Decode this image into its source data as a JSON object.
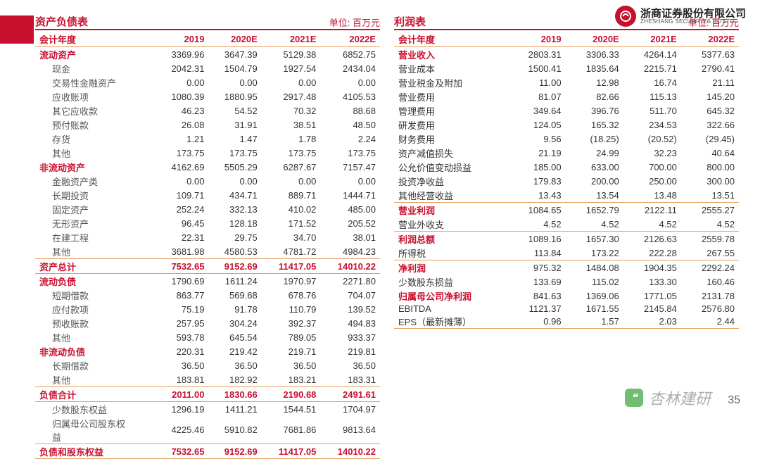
{
  "company_logo": {
    "cn": "浙商证券股份有限公司",
    "en": "ZHESHANG SECURITIES CO.LTD"
  },
  "unit": "单位: 百万元",
  "years": [
    "2019",
    "2020E",
    "2021E",
    "2022E"
  ],
  "year_header_label": "会计年度",
  "left": {
    "title": "资产负债表",
    "rows": [
      {
        "k": "流动资产",
        "v": [
          "3369.96",
          "3647.39",
          "5129.38",
          "6852.75"
        ],
        "bold": true
      },
      {
        "k": "现金",
        "v": [
          "2042.31",
          "1504.79",
          "1927.54",
          "2434.04"
        ],
        "indent": true
      },
      {
        "k": "交易性金融资产",
        "v": [
          "0.00",
          "0.00",
          "0.00",
          "0.00"
        ],
        "indent": true
      },
      {
        "k": "应收账项",
        "v": [
          "1080.39",
          "1880.95",
          "2917.48",
          "4105.53"
        ],
        "indent": true
      },
      {
        "k": "其它应收款",
        "v": [
          "46.23",
          "54.52",
          "70.32",
          "88.68"
        ],
        "indent": true
      },
      {
        "k": "预付账款",
        "v": [
          "26.08",
          "31.91",
          "38.51",
          "48.50"
        ],
        "indent": true
      },
      {
        "k": "存货",
        "v": [
          "1.21",
          "1.47",
          "1.78",
          "2.24"
        ],
        "indent": true
      },
      {
        "k": "其他",
        "v": [
          "173.75",
          "173.75",
          "173.75",
          "173.75"
        ],
        "indent": true
      },
      {
        "k": "非流动资产",
        "v": [
          "4162.69",
          "5505.29",
          "6287.67",
          "7157.47"
        ],
        "bold": true
      },
      {
        "k": "金融资产类",
        "v": [
          "0.00",
          "0.00",
          "0.00",
          "0.00"
        ],
        "indent": true
      },
      {
        "k": "长期投资",
        "v": [
          "109.71",
          "434.71",
          "889.71",
          "1444.71"
        ],
        "indent": true
      },
      {
        "k": "固定资产",
        "v": [
          "252.24",
          "332.13",
          "410.02",
          "485.00"
        ],
        "indent": true
      },
      {
        "k": "无形资产",
        "v": [
          "96.45",
          "128.18",
          "171.52",
          "205.52"
        ],
        "indent": true
      },
      {
        "k": "在建工程",
        "v": [
          "22.31",
          "29.75",
          "34.70",
          "38.01"
        ],
        "indent": true
      },
      {
        "k": "其他",
        "v": [
          "3681.98",
          "4580.53",
          "4781.72",
          "4984.23"
        ],
        "indent": true,
        "sep": true
      },
      {
        "k": "资产总计",
        "v": [
          "7532.65",
          "9152.69",
          "11417.05",
          "14010.22"
        ],
        "boldall": true,
        "sep": true
      },
      {
        "k": "流动负债",
        "v": [
          "1790.69",
          "1611.24",
          "1970.97",
          "2271.80"
        ],
        "bold": true
      },
      {
        "k": "短期借款",
        "v": [
          "863.77",
          "569.68",
          "678.76",
          "704.07"
        ],
        "indent": true
      },
      {
        "k": "应付款项",
        "v": [
          "75.19",
          "91.78",
          "110.79",
          "139.52"
        ],
        "indent": true
      },
      {
        "k": "预收账款",
        "v": [
          "257.95",
          "304.24",
          "392.37",
          "494.83"
        ],
        "indent": true
      },
      {
        "k": "其他",
        "v": [
          "593.78",
          "645.54",
          "789.05",
          "933.37"
        ],
        "indent": true
      },
      {
        "k": "非流动负债",
        "v": [
          "220.31",
          "219.42",
          "219.71",
          "219.81"
        ],
        "bold": true
      },
      {
        "k": "长期借款",
        "v": [
          "36.50",
          "36.50",
          "36.50",
          "36.50"
        ],
        "indent": true
      },
      {
        "k": "其他",
        "v": [
          "183.81",
          "182.92",
          "183.21",
          "183.31"
        ],
        "indent": true,
        "sep": true
      },
      {
        "k": "负债合计",
        "v": [
          "2011.00",
          "1830.66",
          "2190.68",
          "2491.61"
        ],
        "boldall": true,
        "sep": true
      },
      {
        "k": "少数股东权益",
        "v": [
          "1296.19",
          "1411.21",
          "1544.51",
          "1704.97"
        ],
        "indent": true
      },
      {
        "k": "归属母公司股东权益",
        "v": [
          "4225.46",
          "5910.82",
          "7681.86",
          "9813.64"
        ],
        "indent": true,
        "sep": true,
        "wrap": true
      },
      {
        "k": "负债和股东权益",
        "v": [
          "7532.65",
          "9152.69",
          "11417.05",
          "14010.22"
        ],
        "boldall": true,
        "sep": true
      }
    ]
  },
  "right": {
    "title": "利润表",
    "rows": [
      {
        "k": "营业收入",
        "v": [
          "2803.31",
          "3306.33",
          "4264.14",
          "5377.63"
        ],
        "bold": true
      },
      {
        "k": "营业成本",
        "v": [
          "1500.41",
          "1835.64",
          "2215.71",
          "2790.41"
        ]
      },
      {
        "k": "营业税金及附加",
        "v": [
          "11.00",
          "12.98",
          "16.74",
          "21.11"
        ]
      },
      {
        "k": "营业费用",
        "v": [
          "81.07",
          "82.66",
          "115.13",
          "145.20"
        ]
      },
      {
        "k": "管理费用",
        "v": [
          "349.64",
          "396.76",
          "511.70",
          "645.32"
        ]
      },
      {
        "k": "研发费用",
        "v": [
          "124.05",
          "165.32",
          "234.53",
          "322.66"
        ]
      },
      {
        "k": "财务费用",
        "v": [
          "9.56",
          "(18.25)",
          "(20.52)",
          "(29.45)"
        ]
      },
      {
        "k": "资产减值损失",
        "v": [
          "21.19",
          "24.99",
          "32.23",
          "40.64"
        ]
      },
      {
        "k": "公允价值变动损益",
        "v": [
          "185.00",
          "633.00",
          "700.00",
          "800.00"
        ]
      },
      {
        "k": "投资净收益",
        "v": [
          "179.83",
          "200.00",
          "250.00",
          "300.00"
        ]
      },
      {
        "k": "其他经营收益",
        "v": [
          "13.43",
          "13.54",
          "13.48",
          "13.51"
        ],
        "sep": true
      },
      {
        "k": "营业利润",
        "v": [
          "1084.65",
          "1652.79",
          "2122.11",
          "2555.27"
        ],
        "bold": true
      },
      {
        "k": "营业外收支",
        "v": [
          "4.52",
          "4.52",
          "4.52",
          "4.52"
        ],
        "sep": true
      },
      {
        "k": "利润总额",
        "v": [
          "1089.16",
          "1657.30",
          "2126.63",
          "2559.78"
        ],
        "bold": true
      },
      {
        "k": "所得税",
        "v": [
          "113.84",
          "173.22",
          "222.28",
          "267.55"
        ],
        "sep": true
      },
      {
        "k": "净利润",
        "v": [
          "975.32",
          "1484.08",
          "1904.35",
          "2292.24"
        ],
        "bold": true
      },
      {
        "k": "少数股东损益",
        "v": [
          "133.69",
          "115.02",
          "133.30",
          "160.46"
        ]
      },
      {
        "k": "归属母公司净利润",
        "v": [
          "841.63",
          "1369.06",
          "1771.05",
          "2131.78"
        ],
        "bold": true
      },
      {
        "k": "EBITDA",
        "v": [
          "1121.37",
          "1671.55",
          "2145.84",
          "2576.80"
        ]
      },
      {
        "k": "EPS（最新摊薄）",
        "v": [
          "0.96",
          "1.57",
          "2.03",
          "2.44"
        ],
        "sep": true
      }
    ]
  },
  "watermark": "杏林建研",
  "page_num": "35",
  "colors": {
    "brand": "#c8102e",
    "border": "#e69f5c",
    "text": "#333333"
  }
}
